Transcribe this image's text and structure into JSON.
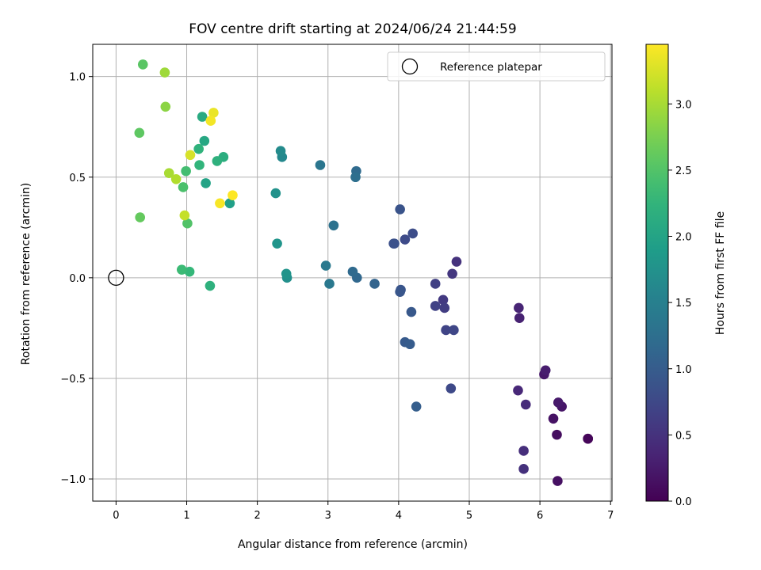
{
  "chart_data": {
    "type": "scatter",
    "title": "FOV centre drift starting at 2024/06/24 21:44:59",
    "xlabel": "Angular distance from reference (arcmin)",
    "ylabel": "Rotation from reference (arcmin)",
    "xlim": [
      -0.33,
      7.02
    ],
    "ylim": [
      -1.11,
      1.16
    ],
    "xticks": [
      0,
      1,
      2,
      3,
      4,
      5,
      6,
      7
    ],
    "yticks": [
      -1.0,
      -0.5,
      0.0,
      0.5,
      1.0
    ],
    "xtick_labels": [
      "0",
      "1",
      "2",
      "3",
      "4",
      "5",
      "6",
      "7"
    ],
    "ytick_labels": [
      "−1.0",
      "−0.5",
      "0.0",
      "0.5",
      "1.0"
    ],
    "grid": true,
    "legend": {
      "position": "top-right",
      "entries": [
        "Reference platepar"
      ]
    },
    "reference_point": {
      "x": 0,
      "y": 0
    },
    "colorbar": {
      "label": "Hours from first FF file",
      "colormap": "viridis",
      "range": [
        0,
        3.45
      ],
      "ticks": [
        0.0,
        0.5,
        1.0,
        1.5,
        2.0,
        2.5,
        3.0
      ],
      "tick_labels": [
        "0.0",
        "0.5",
        "1.0",
        "1.5",
        "2.0",
        "2.5",
        "3.0"
      ]
    },
    "series": [
      {
        "points": [
          {
            "x": 6.68,
            "y": -0.8,
            "c": 0.0
          },
          {
            "x": 6.68,
            "y": -0.8,
            "c": 0.05
          },
          {
            "x": 6.25,
            "y": -1.01,
            "c": 0.15
          },
          {
            "x": 6.24,
            "y": -0.78,
            "c": 0.12
          },
          {
            "x": 6.19,
            "y": -0.7,
            "c": 0.17
          },
          {
            "x": 6.31,
            "y": -0.64,
            "c": 0.2
          },
          {
            "x": 6.26,
            "y": -0.62,
            "c": 0.25
          },
          {
            "x": 6.06,
            "y": -0.48,
            "c": 0.22
          },
          {
            "x": 6.08,
            "y": -0.46,
            "c": 0.28
          },
          {
            "x": 5.7,
            "y": -0.15,
            "c": 0.35
          },
          {
            "x": 5.71,
            "y": -0.2,
            "c": 0.32
          },
          {
            "x": 5.69,
            "y": -0.56,
            "c": 0.38
          },
          {
            "x": 5.8,
            "y": -0.63,
            "c": 0.42
          },
          {
            "x": 5.77,
            "y": -0.86,
            "c": 0.45
          },
          {
            "x": 5.77,
            "y": -0.95,
            "c": 0.48
          },
          {
            "x": 4.82,
            "y": 0.08,
            "c": 0.5
          },
          {
            "x": 4.76,
            "y": 0.02,
            "c": 0.55
          },
          {
            "x": 4.63,
            "y": -0.11,
            "c": 0.58
          },
          {
            "x": 4.65,
            "y": -0.15,
            "c": 0.62
          },
          {
            "x": 4.52,
            "y": -0.03,
            "c": 0.65
          },
          {
            "x": 4.52,
            "y": -0.14,
            "c": 0.68
          },
          {
            "x": 4.67,
            "y": -0.26,
            "c": 0.7
          },
          {
            "x": 4.78,
            "y": -0.26,
            "c": 0.73
          },
          {
            "x": 4.74,
            "y": -0.55,
            "c": 0.75
          },
          {
            "x": 4.09,
            "y": 0.19,
            "c": 0.78
          },
          {
            "x": 4.2,
            "y": 0.22,
            "c": 0.8
          },
          {
            "x": 3.93,
            "y": 0.17,
            "c": 0.83
          },
          {
            "x": 3.94,
            "y": 0.17,
            "c": 0.85
          },
          {
            "x": 4.02,
            "y": 0.34,
            "c": 0.88
          },
          {
            "x": 4.03,
            "y": -0.06,
            "c": 0.9
          },
          {
            "x": 4.02,
            "y": -0.07,
            "c": 0.92
          },
          {
            "x": 4.18,
            "y": -0.17,
            "c": 0.95
          },
          {
            "x": 4.09,
            "y": -0.32,
            "c": 0.97
          },
          {
            "x": 4.16,
            "y": -0.33,
            "c": 1.0
          },
          {
            "x": 4.25,
            "y": -0.64,
            "c": 1.02
          },
          {
            "x": 3.66,
            "y": -0.03,
            "c": 1.1
          },
          {
            "x": 3.41,
            "y": 0.0,
            "c": 1.15
          },
          {
            "x": 3.35,
            "y": 0.03,
            "c": 1.18
          },
          {
            "x": 3.4,
            "y": 0.53,
            "c": 1.2
          },
          {
            "x": 3.39,
            "y": 0.5,
            "c": 1.25
          },
          {
            "x": 2.89,
            "y": 0.56,
            "c": 1.35
          },
          {
            "x": 3.08,
            "y": 0.26,
            "c": 1.3
          },
          {
            "x": 2.97,
            "y": 0.06,
            "c": 1.4
          },
          {
            "x": 3.02,
            "y": -0.03,
            "c": 1.38
          },
          {
            "x": 2.35,
            "y": 0.6,
            "c": 1.62
          },
          {
            "x": 2.33,
            "y": 0.63,
            "c": 1.65
          },
          {
            "x": 2.26,
            "y": 0.42,
            "c": 1.75
          },
          {
            "x": 2.28,
            "y": 0.17,
            "c": 1.8
          },
          {
            "x": 2.41,
            "y": 0.02,
            "c": 1.78
          },
          {
            "x": 2.42,
            "y": 0.0,
            "c": 1.72
          },
          {
            "x": 1.61,
            "y": 0.37,
            "c": 1.95
          },
          {
            "x": 1.27,
            "y": 0.47,
            "c": 2.0
          },
          {
            "x": 1.25,
            "y": 0.68,
            "c": 2.05
          },
          {
            "x": 1.22,
            "y": 0.8,
            "c": 2.1
          },
          {
            "x": 1.52,
            "y": 0.6,
            "c": 2.15
          },
          {
            "x": 1.43,
            "y": 0.58,
            "c": 2.2
          },
          {
            "x": 1.17,
            "y": 0.64,
            "c": 2.22
          },
          {
            "x": 1.18,
            "y": 0.56,
            "c": 2.25
          },
          {
            "x": 1.33,
            "y": -0.04,
            "c": 2.2
          },
          {
            "x": 1.04,
            "y": 0.03,
            "c": 2.3
          },
          {
            "x": 0.93,
            "y": 0.04,
            "c": 2.35
          },
          {
            "x": 0.99,
            "y": 0.53,
            "c": 2.4
          },
          {
            "x": 0.95,
            "y": 0.45,
            "c": 2.45
          },
          {
            "x": 1.01,
            "y": 0.27,
            "c": 2.5
          },
          {
            "x": 0.38,
            "y": 1.06,
            "c": 2.55
          },
          {
            "x": 0.33,
            "y": 0.72,
            "c": 2.58
          },
          {
            "x": 0.34,
            "y": 0.3,
            "c": 2.62
          },
          {
            "x": 0.7,
            "y": 0.85,
            "c": 2.85
          },
          {
            "x": 0.69,
            "y": 1.02,
            "c": 2.95
          },
          {
            "x": 0.75,
            "y": 0.52,
            "c": 3.0
          },
          {
            "x": 0.85,
            "y": 0.49,
            "c": 3.05
          },
          {
            "x": 0.97,
            "y": 0.31,
            "c": 3.15
          },
          {
            "x": 1.05,
            "y": 0.61,
            "c": 3.25
          },
          {
            "x": 1.38,
            "y": 0.82,
            "c": 3.35
          },
          {
            "x": 1.34,
            "y": 0.78,
            "c": 3.4
          },
          {
            "x": 1.47,
            "y": 0.37,
            "c": 3.42
          },
          {
            "x": 1.65,
            "y": 0.41,
            "c": 3.45
          }
        ]
      }
    ]
  }
}
